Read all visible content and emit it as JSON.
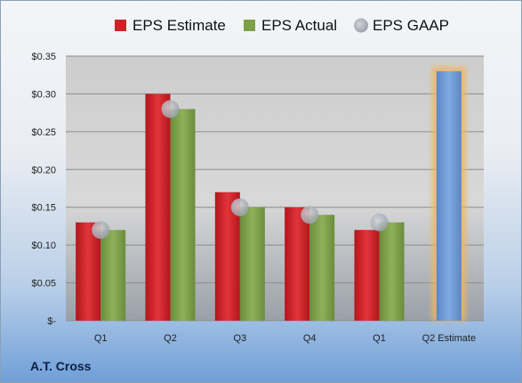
{
  "chart_data": {
    "type": "bar",
    "categories": [
      "Q1",
      "Q2",
      "Q3",
      "Q4",
      "Q1",
      "Q2 Estimate"
    ],
    "series": [
      {
        "name": "EPS Estimate",
        "values": [
          0.13,
          0.3,
          0.17,
          0.15,
          0.12,
          null
        ],
        "color": "#cc2229"
      },
      {
        "name": "EPS Actual",
        "values": [
          0.12,
          0.28,
          0.15,
          0.14,
          0.13,
          null
        ],
        "color": "#7ea04a"
      },
      {
        "name": "EPS GAAP",
        "values": [
          0.12,
          0.28,
          0.15,
          0.14,
          0.13,
          null
        ],
        "color": "#b8bcc4"
      }
    ],
    "highlight": {
      "category": "Q2 Estimate",
      "value": 0.33,
      "color": "#6b9ad6",
      "glow": "#f2b463"
    },
    "ylim": [
      0,
      0.35
    ],
    "yticks": [
      0,
      0.05,
      0.1,
      0.15,
      0.2,
      0.25,
      0.3,
      0.35
    ],
    "ytick_labels": [
      "$-",
      "$0.05",
      "$0.10",
      "$0.15",
      "$0.20",
      "$0.25",
      "$0.30",
      "$0.35"
    ],
    "grid": true,
    "legend_position": "top"
  },
  "footer": {
    "company": "A.T. Cross"
  }
}
